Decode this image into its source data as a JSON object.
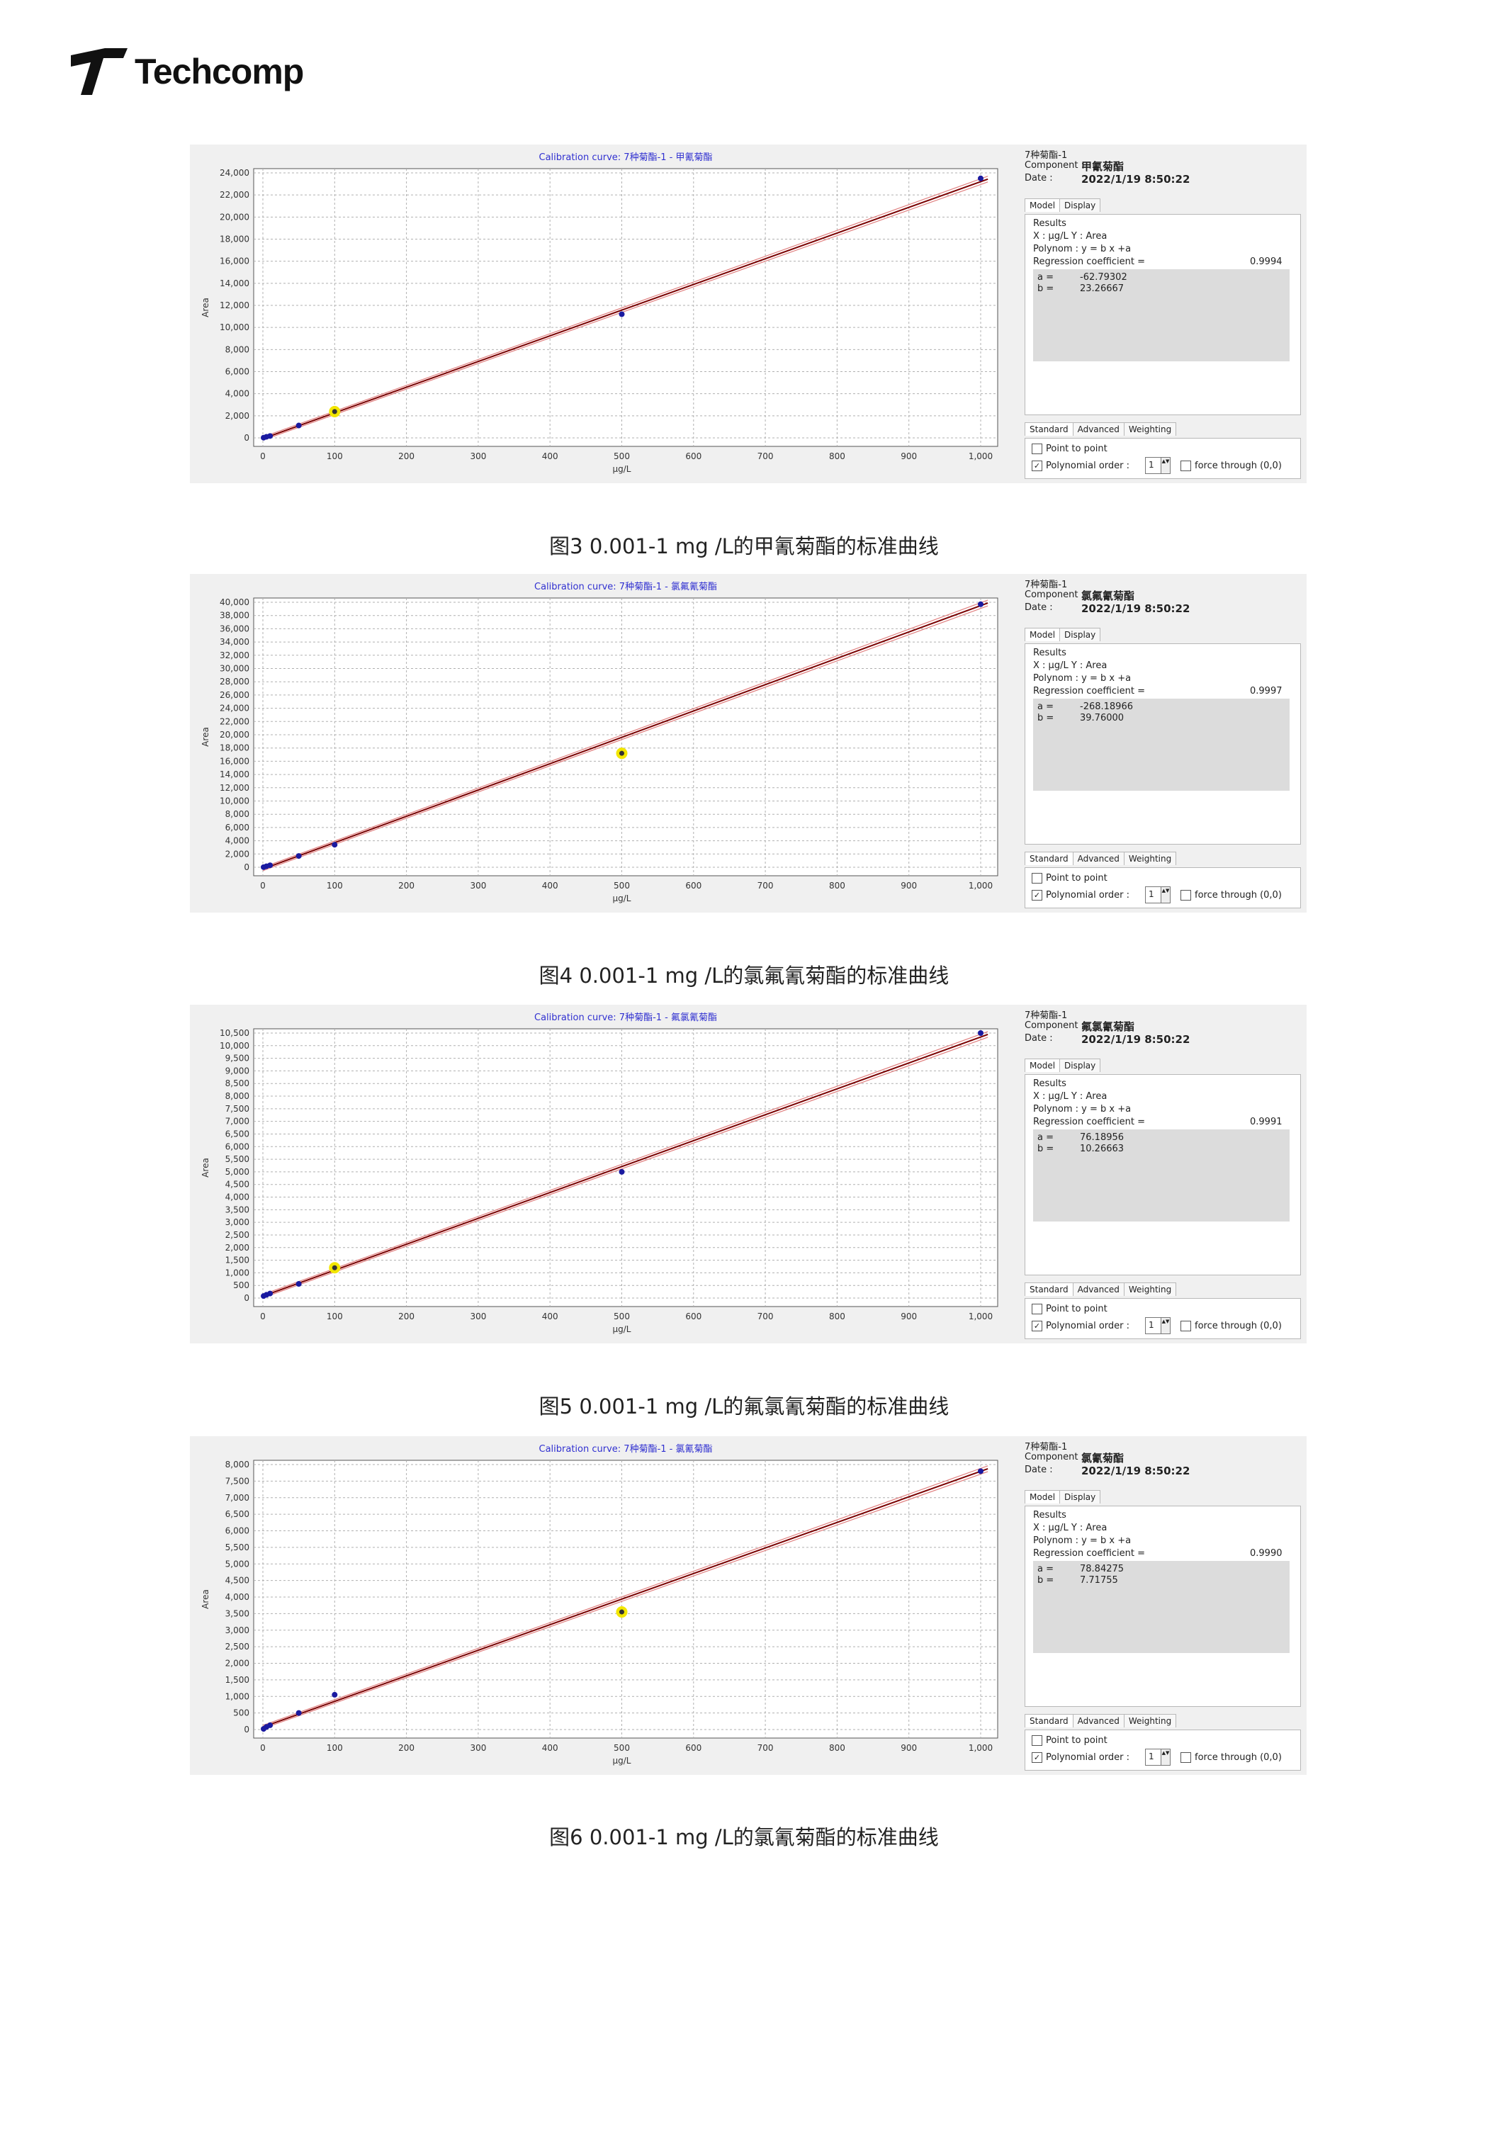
{
  "logo": {
    "text": "Techcomp"
  },
  "chart_data": [
    {
      "type": "scatter",
      "title": "Calibration curve: 7种菊酯-1 - 甲氰菊酯",
      "xlabel": "μg/L",
      "ylabel": "Area",
      "xlim": [
        0,
        1000
      ],
      "ylim": [
        0,
        24000
      ],
      "xticks": [
        0,
        100,
        200,
        300,
        400,
        500,
        600,
        700,
        800,
        900,
        1000
      ],
      "xtick_labels": [
        "0",
        "100",
        "200",
        "300",
        "400",
        "500",
        "600",
        "700",
        "800",
        "900",
        "1,000"
      ],
      "yticks": [
        0,
        2000,
        4000,
        6000,
        8000,
        10000,
        12000,
        14000,
        16000,
        18000,
        20000,
        22000,
        24000
      ],
      "ytick_labels": [
        "0",
        "2,000",
        "4,000",
        "6,000",
        "8,000",
        "10,000",
        "12,000",
        "14,000",
        "16,000",
        "18,000",
        "20,000",
        "22,000",
        "24,000"
      ],
      "points": [
        [
          1,
          20
        ],
        [
          5,
          100
        ],
        [
          10,
          170
        ],
        [
          50,
          1120
        ],
        [
          500,
          11200
        ],
        [
          1000,
          23500
        ]
      ],
      "highlight": [
        [
          100,
          2380
        ]
      ],
      "fit": {
        "a": -62.79302,
        "b": 23.26667
      },
      "grid": true
    },
    {
      "type": "scatter",
      "title": "Calibration curve: 7种菊酯-1 - 氯氟氰菊酯",
      "xlabel": "μg/L",
      "ylabel": "Area",
      "xlim": [
        0,
        1000
      ],
      "ylim": [
        0,
        40000
      ],
      "xticks": [
        0,
        100,
        200,
        300,
        400,
        500,
        600,
        700,
        800,
        900,
        1000
      ],
      "xtick_labels": [
        "0",
        "100",
        "200",
        "300",
        "400",
        "500",
        "600",
        "700",
        "800",
        "900",
        "1,000"
      ],
      "yticks": [
        0,
        2000,
        4000,
        6000,
        8000,
        10000,
        12000,
        14000,
        16000,
        18000,
        20000,
        22000,
        24000,
        26000,
        28000,
        30000,
        32000,
        34000,
        36000,
        38000,
        40000
      ],
      "ytick_labels": [
        "0",
        "2,000",
        "4,000",
        "6,000",
        "8,000",
        "10,000",
        "12,000",
        "14,000",
        "16,000",
        "18,000",
        "20,000",
        "22,000",
        "24,000",
        "26,000",
        "28,000",
        "30,000",
        "32,000",
        "34,000",
        "36,000",
        "38,000",
        "40,000"
      ],
      "points": [
        [
          1,
          20
        ],
        [
          5,
          150
        ],
        [
          10,
          300
        ],
        [
          50,
          1700
        ],
        [
          100,
          3400
        ],
        [
          1000,
          39700
        ]
      ],
      "highlight": [
        [
          500,
          17200
        ]
      ],
      "fit": {
        "a": -268.18966,
        "b": 39.76
      },
      "grid": true
    },
    {
      "type": "scatter",
      "title": "Calibration curve: 7种菊酯-1 - 氟氯氰菊酯",
      "xlabel": "μg/L",
      "ylabel": "Area",
      "xlim": [
        0,
        1000
      ],
      "ylim": [
        0,
        10500
      ],
      "xticks": [
        0,
        100,
        200,
        300,
        400,
        500,
        600,
        700,
        800,
        900,
        1000
      ],
      "xtick_labels": [
        "0",
        "100",
        "200",
        "300",
        "400",
        "500",
        "600",
        "700",
        "800",
        "900",
        "1,000"
      ],
      "yticks": [
        0,
        500,
        1000,
        1500,
        2000,
        2500,
        3000,
        3500,
        4000,
        4500,
        5000,
        5500,
        6000,
        6500,
        7000,
        7500,
        8000,
        8500,
        9000,
        9500,
        10000,
        10500
      ],
      "ytick_labels": [
        "0",
        "500",
        "1,000",
        "1,500",
        "2,000",
        "2,500",
        "3,000",
        "3,500",
        "4,000",
        "4,500",
        "5,000",
        "5,500",
        "6,000",
        "6,500",
        "7,000",
        "7,500",
        "8,000",
        "8,500",
        "9,000",
        "9,500",
        "10,000",
        "10,500"
      ],
      "points": [
        [
          1,
          80
        ],
        [
          5,
          130
        ],
        [
          10,
          180
        ],
        [
          50,
          560
        ],
        [
          500,
          5000
        ],
        [
          1000,
          10500
        ]
      ],
      "highlight": [
        [
          100,
          1200
        ]
      ],
      "fit": {
        "a": 76.18956,
        "b": 10.26663
      },
      "grid": true
    },
    {
      "type": "scatter",
      "title": "Calibration curve: 7种菊酯-1 - 氯氰菊酯",
      "xlabel": "μg/L",
      "ylabel": "Area",
      "xlim": [
        0,
        1000
      ],
      "ylim": [
        0,
        8000
      ],
      "xticks": [
        0,
        100,
        200,
        300,
        400,
        500,
        600,
        700,
        800,
        900,
        1000
      ],
      "xtick_labels": [
        "0",
        "100",
        "200",
        "300",
        "400",
        "500",
        "600",
        "700",
        "800",
        "900",
        "1,000"
      ],
      "yticks": [
        0,
        500,
        1000,
        1500,
        2000,
        2500,
        3000,
        3500,
        4000,
        4500,
        5000,
        5500,
        6000,
        6500,
        7000,
        7500,
        8000
      ],
      "ytick_labels": [
        "0",
        "500",
        "1,000",
        "1,500",
        "2,000",
        "2,500",
        "3,000",
        "3,500",
        "4,000",
        "4,500",
        "5,000",
        "5,500",
        "6,000",
        "6,500",
        "7,000",
        "7,500",
        "8,000"
      ],
      "points": [
        [
          1,
          20
        ],
        [
          5,
          80
        ],
        [
          10,
          130
        ],
        [
          50,
          500
        ],
        [
          100,
          1050
        ],
        [
          1000,
          7800
        ]
      ],
      "highlight": [
        [
          500,
          3550
        ]
      ],
      "fit": {
        "a": 78.84275,
        "b": 7.71755
      },
      "grid": true
    }
  ],
  "panels": [
    {
      "sample": "7种菊酯-1",
      "component_label": "Component :",
      "component": "甲氰菊酯",
      "date_label": "Date :",
      "date": "2022/1/19 8:50:22",
      "tabs": [
        "Model",
        "Display"
      ],
      "results_label": "Results",
      "xy": "X : μg/L   Y : Area",
      "polynom": "Polynom : y = b x +a",
      "regression_label": "Regression coefficient =",
      "regression": "0.9994",
      "a_label": "a =",
      "a": "-62.79302",
      "b_label": "b =",
      "b": "23.26667",
      "tabs2": [
        "Standard",
        "Advanced",
        "Weighting"
      ],
      "point_to_point": "Point to point",
      "poly_order_label": "Polynomial order :",
      "poly_order": "1",
      "force": "force through (0,0)"
    },
    {
      "sample": "7种菊酯-1",
      "component_label": "Component :",
      "component": "氯氟氰菊酯",
      "date_label": "Date :",
      "date": "2022/1/19 8:50:22",
      "tabs": [
        "Model",
        "Display"
      ],
      "results_label": "Results",
      "xy": "X : μg/L   Y : Area",
      "polynom": "Polynom : y = b x +a",
      "regression_label": "Regression coefficient =",
      "regression": "0.9997",
      "a_label": "a =",
      "a": "-268.18966",
      "b_label": "b =",
      "b": "39.76000",
      "tabs2": [
        "Standard",
        "Advanced",
        "Weighting"
      ],
      "point_to_point": "Point to point",
      "poly_order_label": "Polynomial order :",
      "poly_order": "1",
      "force": "force through (0,0)"
    },
    {
      "sample": "7种菊酯-1",
      "component_label": "Component :",
      "component": "氟氯氰菊酯",
      "date_label": "Date :",
      "date": "2022/1/19 8:50:22",
      "tabs": [
        "Model",
        "Display"
      ],
      "results_label": "Results",
      "xy": "X : μg/L   Y : Area",
      "polynom": "Polynom : y = b x +a",
      "regression_label": "Regression coefficient =",
      "regression": "0.9991",
      "a_label": "a =",
      "a": "76.18956",
      "b_label": "b =",
      "b": "10.26663",
      "tabs2": [
        "Standard",
        "Advanced",
        "Weighting"
      ],
      "point_to_point": "Point to point",
      "poly_order_label": "Polynomial order :",
      "poly_order": "1",
      "force": "force through (0,0)"
    },
    {
      "sample": "7种菊酯-1",
      "component_label": "Component :",
      "component": "氯氰菊酯",
      "date_label": "Date :",
      "date": "2022/1/19 8:50:22",
      "tabs": [
        "Model",
        "Display"
      ],
      "results_label": "Results",
      "xy": "X : μg/L   Y : Area",
      "polynom": "Polynom : y = b x +a",
      "regression_label": "Regression coefficient =",
      "regression": "0.9990",
      "a_label": "a =",
      "a": "78.84275",
      "b_label": "b =",
      "b": "7.71755",
      "tabs2": [
        "Standard",
        "Advanced",
        "Weighting"
      ],
      "point_to_point": "Point to point",
      "poly_order_label": "Polynomial order :",
      "poly_order": "1",
      "force": "force through (0,0)"
    }
  ],
  "captions": [
    "图3  0.001-1 mg /L的甲氰菊酯的标准曲线",
    "图4  0.001-1 mg /L的氯氟氰菊酯的标准曲线",
    "图5  0.001-1 mg /L的氟氯氰菊酯的标准曲线",
    "图6  0.001-1 mg /L的氯氰菊酯的标准曲线"
  ],
  "colors": {
    "point": "#1a1aa0",
    "highlight": "#f2e600",
    "fit": "#7a0000",
    "band": "#e08080",
    "title": "#3030d0",
    "grid": "#b0b0b0"
  }
}
